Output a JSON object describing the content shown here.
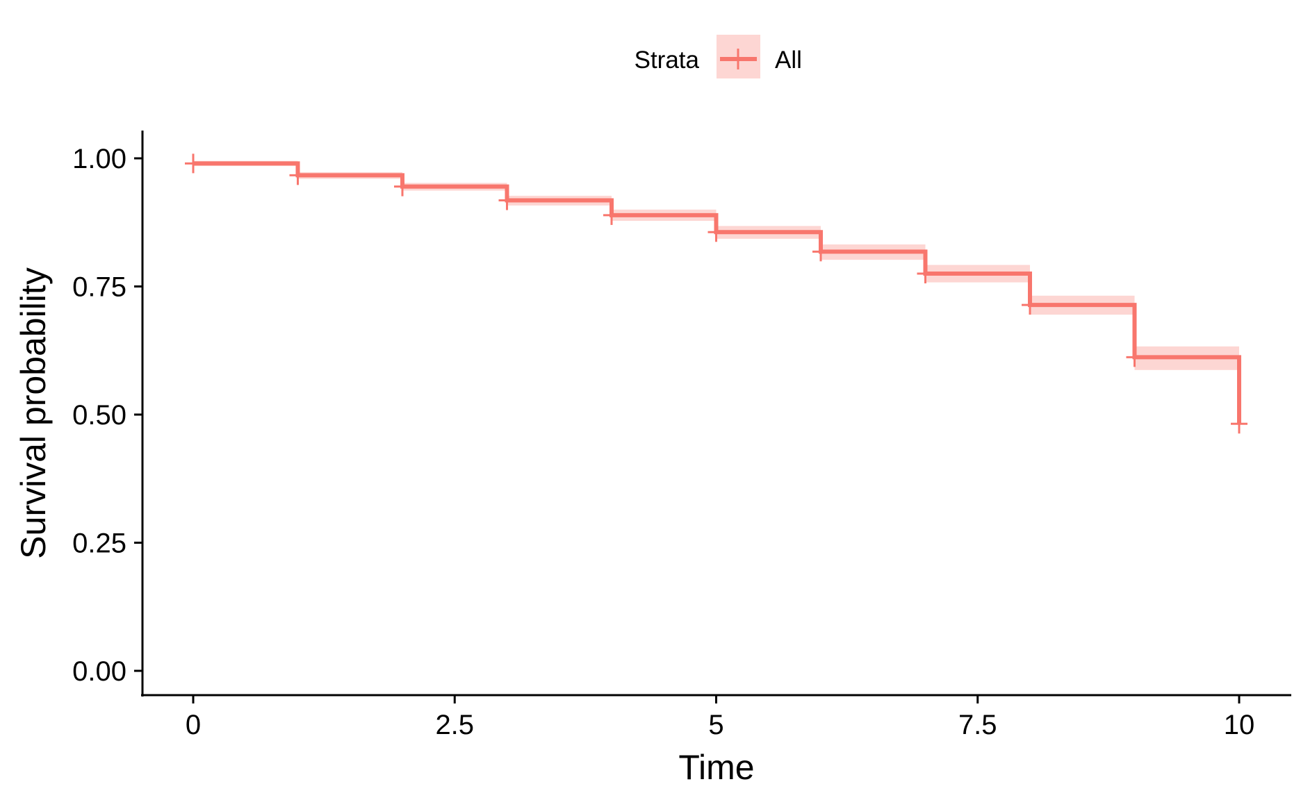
{
  "chart_data": {
    "type": "line",
    "subtype": "kaplan-meier step",
    "xlabel": "Time",
    "ylabel": "Survival probability",
    "x_ticks": [
      "0",
      "2.5",
      "5",
      "7.5",
      "10"
    ],
    "x_tick_values": [
      0,
      2.5,
      5,
      7.5,
      10
    ],
    "y_ticks": [
      "0.00",
      "0.25",
      "0.50",
      "0.75",
      "1.00"
    ],
    "y_tick_values": [
      0,
      0.25,
      0.5,
      0.75,
      1.0
    ],
    "xlim": [
      -0.5,
      10.5
    ],
    "ylim": [
      -0.05,
      1.05
    ],
    "grid": false,
    "legend": {
      "title": "Strata",
      "placement": "top",
      "entries": [
        "All"
      ]
    },
    "series": [
      {
        "name": "All",
        "color": "#F8766D",
        "ci_color": "#F8766D",
        "time": [
          0,
          1,
          2,
          3,
          4,
          5,
          6,
          7,
          8,
          9,
          10
        ],
        "survival": [
          0.99,
          0.967,
          0.945,
          0.918,
          0.889,
          0.856,
          0.818,
          0.775,
          0.714,
          0.612,
          0.482
        ],
        "ci_lower": [
          0.985,
          0.96,
          0.937,
          0.908,
          0.878,
          0.843,
          0.802,
          0.758,
          0.695,
          0.587,
          0.482
        ],
        "ci_upper": [
          0.995,
          0.973,
          0.952,
          0.927,
          0.9,
          0.868,
          0.832,
          0.792,
          0.732,
          0.633,
          0.482
        ],
        "censor_times": [
          0,
          1,
          2,
          3,
          4,
          5,
          6,
          7,
          8,
          9,
          10
        ],
        "censor_survival": [
          0.99,
          0.967,
          0.945,
          0.918,
          0.889,
          0.856,
          0.818,
          0.775,
          0.714,
          0.612,
          0.482
        ]
      }
    ]
  }
}
